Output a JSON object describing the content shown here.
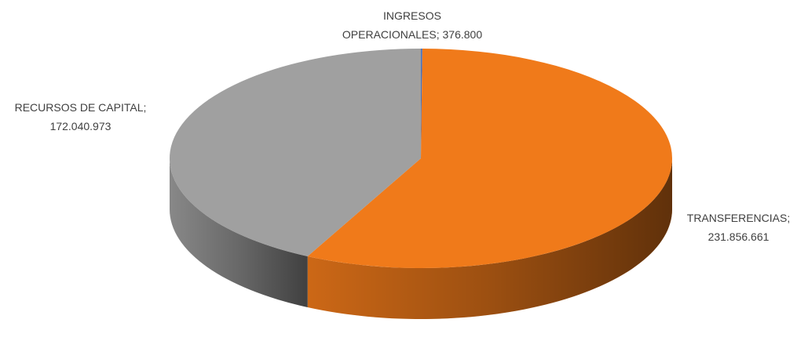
{
  "chart_data": {
    "type": "pie3d",
    "categories": [
      "INGRESOS OPERACIONALES",
      "TRANSFERENCIAS",
      "RECURSOS DE CAPITAL"
    ],
    "values": [
      376800,
      231856661,
      172040973
    ],
    "value_labels": [
      "376.800",
      "231.856.661",
      "172.040.973"
    ],
    "label_separator": ";",
    "colors": [
      "#4472c4",
      "#f07a1a",
      "#a0a0a0"
    ]
  }
}
